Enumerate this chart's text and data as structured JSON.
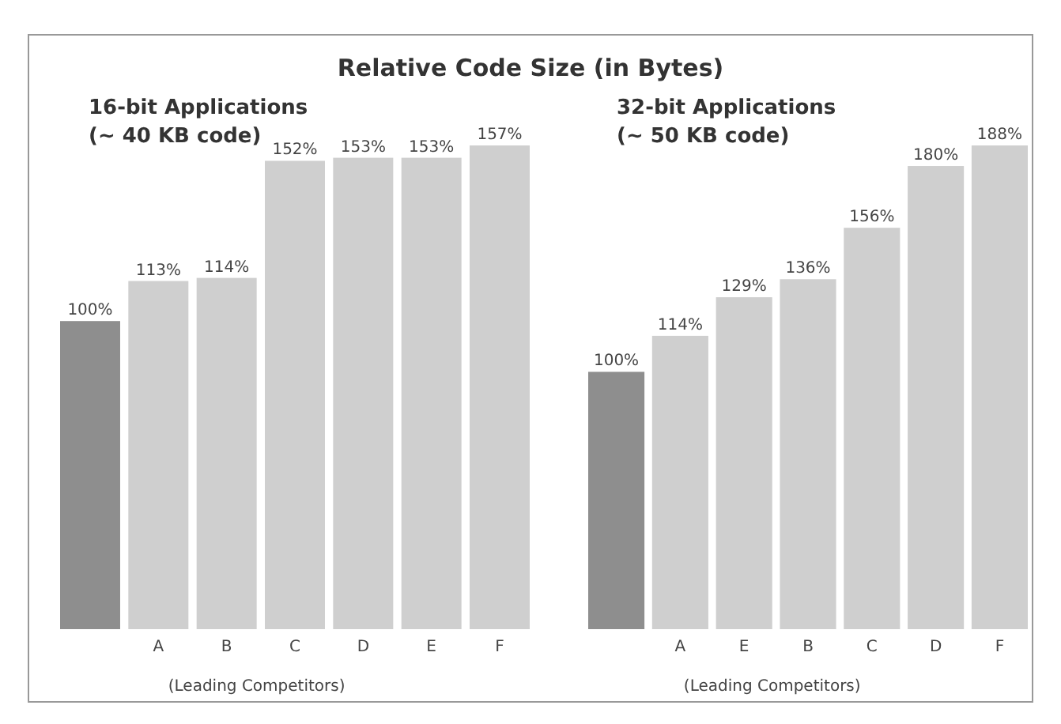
{
  "chart_data": [
    {
      "type": "bar",
      "title": "Relative Code Size (in Bytes)",
      "subtitle": "16-bit Applications",
      "annotations": [
        "(~ 40 KB code)",
        "(Leading Competitors)"
      ],
      "categories": [
        null,
        "A",
        "B",
        "C",
        "D",
        "E",
        "F"
      ],
      "values": [
        100,
        113,
        114,
        152,
        153,
        153,
        157
      ],
      "value_labels": [
        "100%",
        "113%",
        "114%",
        "152%",
        "153%",
        "153%",
        "157%"
      ],
      "colors": [
        "#8e8e8e",
        "#cfcfcf",
        "#cfcfcf",
        "#cfcfcf",
        "#cfcfcf",
        "#cfcfcf",
        "#cfcfcf"
      ],
      "tick_labels": "x"
    },
    {
      "type": "bar",
      "subtitle": "32-bit Applications",
      "annotations": [
        "(~ 50 KB code)",
        "(Leading Competitors)"
      ],
      "categories": [
        null,
        "A",
        "E",
        "B",
        "C",
        "D",
        "F"
      ],
      "values": [
        100,
        114,
        129,
        136,
        156,
        180,
        188
      ],
      "value_labels": [
        "100%",
        "114%",
        "129%",
        "136%",
        "156%",
        "180%",
        "188%"
      ],
      "colors": [
        "#8e8e8e",
        "#cfcfcf",
        "#cfcfcf",
        "#cfcfcf",
        "#cfcfcf",
        "#cfcfcf",
        "#cfcfcf"
      ],
      "tick_labels": "x"
    }
  ]
}
